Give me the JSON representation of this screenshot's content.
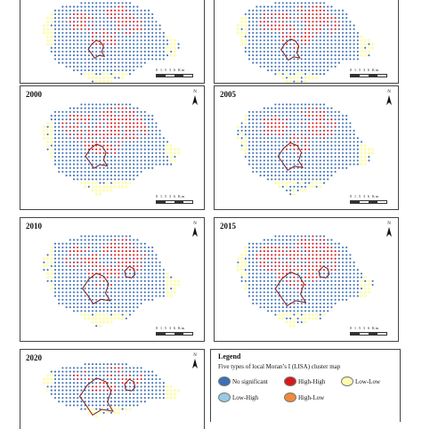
{
  "panels": [
    {
      "id": "p1",
      "year": "",
      "variant": 0
    },
    {
      "id": "p2",
      "year": "",
      "variant": 1
    },
    {
      "id": "p3",
      "year": "2000",
      "variant": 2
    },
    {
      "id": "p4",
      "year": "2005",
      "variant": 3
    },
    {
      "id": "p5",
      "year": "2010",
      "variant": 4
    },
    {
      "id": "p6",
      "year": "2015",
      "variant": 5
    },
    {
      "id": "p7",
      "year": "2020",
      "variant": 6
    }
  ],
  "map": {
    "north_label": "N",
    "scale_label": "0  1.5  3        6 Km"
  },
  "legend": {
    "title": "Legend",
    "subtitle": "Five types of  local Moran’s I  (LISA) cluster map",
    "items": [
      {
        "label": "No significant",
        "color": "#3b6fb6"
      },
      {
        "label": "High-High",
        "color": "#d7191c"
      },
      {
        "label": "Low-Low",
        "color": "#fdfbb0"
      },
      {
        "label": "Low-High",
        "color": "#9ac9e3"
      },
      {
        "label": "High-Low",
        "color": "#f08a3c"
      }
    ]
  },
  "colors": {
    "no_significant": "#3b6fb6",
    "high_high": "#d7191c",
    "low_low": "#fdfbb0",
    "boundary": "#7a2020"
  }
}
